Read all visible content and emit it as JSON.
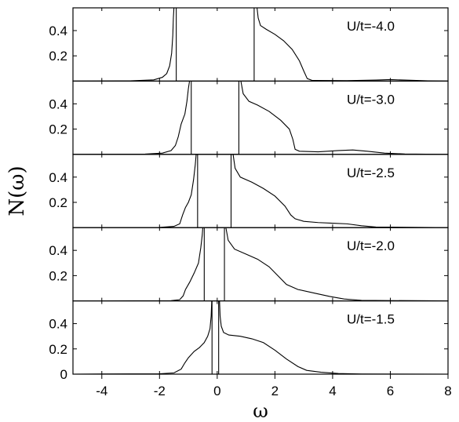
{
  "chart_data": {
    "type": "line",
    "xlabel": "ω",
    "ylabel": "N(ω)",
    "xlim": [
      -5,
      8
    ],
    "x_ticks": [
      -4,
      -2,
      0,
      2,
      4,
      6,
      8
    ],
    "x_tick_labels": [
      "-4",
      "-2",
      "0",
      "2",
      "4",
      "6",
      "8"
    ],
    "grid": false,
    "panels": [
      {
        "label": "U/t=-4.0",
        "ylim": [
          0,
          0.58
        ],
        "y_ticks": [
          0.2,
          0.4
        ],
        "y_tick_labels": [
          "0.2",
          "0.4"
        ],
        "gap_edges": [
          -1.42,
          1.28
        ],
        "curve": [
          [
            -5.0,
            0.0
          ],
          [
            -3.0,
            0.002
          ],
          [
            -2.2,
            0.01
          ],
          [
            -1.9,
            0.03
          ],
          [
            -1.75,
            0.06
          ],
          [
            -1.65,
            0.12
          ],
          [
            -1.58,
            0.22
          ],
          [
            -1.54,
            0.36
          ],
          [
            -1.52,
            0.5
          ],
          [
            -1.5,
            0.58
          ],
          [
            -1.42,
            0.58
          ],
          [
            -1.42,
            0.0
          ],
          [
            1.28,
            0.0
          ],
          [
            1.28,
            0.58
          ],
          [
            1.38,
            0.58
          ],
          [
            1.42,
            0.5
          ],
          [
            1.5,
            0.44
          ],
          [
            1.7,
            0.41
          ],
          [
            2.0,
            0.37
          ],
          [
            2.3,
            0.32
          ],
          [
            2.6,
            0.25
          ],
          [
            2.85,
            0.16
          ],
          [
            3.0,
            0.08
          ],
          [
            3.12,
            0.02
          ],
          [
            3.3,
            0.005
          ],
          [
            4.5,
            0.004
          ],
          [
            5.5,
            0.008
          ],
          [
            6.0,
            0.012
          ],
          [
            6.5,
            0.008
          ],
          [
            7.3,
            0.002
          ],
          [
            8.0,
            0.0
          ]
        ]
      },
      {
        "label": "U/t=-3.0",
        "ylim": [
          0,
          0.58
        ],
        "y_ticks": [
          0.2,
          0.4
        ],
        "y_tick_labels": [
          "0.2",
          "0.4"
        ],
        "gap_edges": [
          -0.9,
          0.75
        ],
        "curve": [
          [
            -5.0,
            0.0
          ],
          [
            -2.5,
            0.002
          ],
          [
            -1.9,
            0.01
          ],
          [
            -1.6,
            0.03
          ],
          [
            -1.45,
            0.07
          ],
          [
            -1.35,
            0.14
          ],
          [
            -1.25,
            0.24
          ],
          [
            -1.12,
            0.32
          ],
          [
            -1.05,
            0.42
          ],
          [
            -1.0,
            0.52
          ],
          [
            -0.96,
            0.58
          ],
          [
            -0.9,
            0.58
          ],
          [
            -0.9,
            0.0
          ],
          [
            0.75,
            0.0
          ],
          [
            0.75,
            0.58
          ],
          [
            0.82,
            0.58
          ],
          [
            0.9,
            0.48
          ],
          [
            1.1,
            0.42
          ],
          [
            1.4,
            0.39
          ],
          [
            1.8,
            0.34
          ],
          [
            2.2,
            0.27
          ],
          [
            2.5,
            0.2
          ],
          [
            2.62,
            0.12
          ],
          [
            2.7,
            0.04
          ],
          [
            2.85,
            0.025
          ],
          [
            3.5,
            0.02
          ],
          [
            4.2,
            0.03
          ],
          [
            4.7,
            0.035
          ],
          [
            5.2,
            0.025
          ],
          [
            5.8,
            0.01
          ],
          [
            6.5,
            0.003
          ],
          [
            8.0,
            0.0
          ]
        ]
      },
      {
        "label": "U/t=-2.5",
        "ylim": [
          0,
          0.58
        ],
        "y_ticks": [
          0.2,
          0.4
        ],
        "y_tick_labels": [
          "0.2",
          "0.4"
        ],
        "gap_edges": [
          -0.68,
          0.48
        ],
        "curve": [
          [
            -5.0,
            0.0
          ],
          [
            -2.0,
            0.002
          ],
          [
            -1.5,
            0.01
          ],
          [
            -1.3,
            0.03
          ],
          [
            -1.2,
            0.1
          ],
          [
            -1.1,
            0.16
          ],
          [
            -1.0,
            0.2
          ],
          [
            -0.9,
            0.26
          ],
          [
            -0.82,
            0.38
          ],
          [
            -0.76,
            0.5
          ],
          [
            -0.73,
            0.58
          ],
          [
            -0.68,
            0.58
          ],
          [
            -0.68,
            0.0
          ],
          [
            0.48,
            0.0
          ],
          [
            0.48,
            0.58
          ],
          [
            0.55,
            0.58
          ],
          [
            0.62,
            0.47
          ],
          [
            0.8,
            0.4
          ],
          [
            1.2,
            0.36
          ],
          [
            1.6,
            0.31
          ],
          [
            2.0,
            0.25
          ],
          [
            2.35,
            0.17
          ],
          [
            2.55,
            0.1
          ],
          [
            2.7,
            0.07
          ],
          [
            3.0,
            0.05
          ],
          [
            3.5,
            0.04
          ],
          [
            4.0,
            0.035
          ],
          [
            4.5,
            0.03
          ],
          [
            5.0,
            0.015
          ],
          [
            5.5,
            0.005
          ],
          [
            8.0,
            0.0
          ]
        ]
      },
      {
        "label": "U/t=-2.0",
        "ylim": [
          0,
          0.58
        ],
        "y_ticks": [
          0.2,
          0.4
        ],
        "y_tick_labels": [
          "0.2",
          "0.4"
        ],
        "gap_edges": [
          -0.45,
          0.25
        ],
        "curve": [
          [
            -5.0,
            0.0
          ],
          [
            -1.6,
            0.002
          ],
          [
            -1.3,
            0.01
          ],
          [
            -1.18,
            0.04
          ],
          [
            -1.1,
            0.09
          ],
          [
            -0.95,
            0.15
          ],
          [
            -0.8,
            0.22
          ],
          [
            -0.65,
            0.3
          ],
          [
            -0.57,
            0.42
          ],
          [
            -0.52,
            0.52
          ],
          [
            -0.5,
            0.58
          ],
          [
            -0.45,
            0.58
          ],
          [
            -0.45,
            0.0
          ],
          [
            0.25,
            0.0
          ],
          [
            0.25,
            0.58
          ],
          [
            0.3,
            0.58
          ],
          [
            0.38,
            0.48
          ],
          [
            0.6,
            0.41
          ],
          [
            1.0,
            0.37
          ],
          [
            1.4,
            0.33
          ],
          [
            1.8,
            0.27
          ],
          [
            2.1,
            0.2
          ],
          [
            2.4,
            0.13
          ],
          [
            2.8,
            0.09
          ],
          [
            3.4,
            0.06
          ],
          [
            3.9,
            0.035
          ],
          [
            4.4,
            0.015
          ],
          [
            5.0,
            0.004
          ],
          [
            8.0,
            0.0
          ]
        ]
      },
      {
        "label": "U/t=-1.5",
        "ylim": [
          0,
          0.58
        ],
        "y_ticks": [
          0,
          0.2,
          0.4
        ],
        "y_tick_labels": [
          "0",
          "0.2",
          "0.4"
        ],
        "gap_edges": [
          -0.18,
          0.05
        ],
        "curve": [
          [
            -5.0,
            0.0
          ],
          [
            -2.0,
            0.003
          ],
          [
            -1.5,
            0.01
          ],
          [
            -1.25,
            0.04
          ],
          [
            -1.12,
            0.09
          ],
          [
            -1.0,
            0.13
          ],
          [
            -0.8,
            0.18
          ],
          [
            -0.62,
            0.21
          ],
          [
            -0.45,
            0.25
          ],
          [
            -0.33,
            0.3
          ],
          [
            -0.25,
            0.36
          ],
          [
            -0.21,
            0.46
          ],
          [
            -0.19,
            0.58
          ],
          [
            -0.18,
            0.58
          ],
          [
            -0.18,
            0.0
          ],
          [
            0.05,
            0.0
          ],
          [
            0.05,
            0.58
          ],
          [
            0.08,
            0.58
          ],
          [
            0.1,
            0.46
          ],
          [
            0.14,
            0.38
          ],
          [
            0.22,
            0.33
          ],
          [
            0.4,
            0.31
          ],
          [
            0.8,
            0.3
          ],
          [
            1.2,
            0.28
          ],
          [
            1.6,
            0.25
          ],
          [
            2.0,
            0.19
          ],
          [
            2.4,
            0.12
          ],
          [
            2.8,
            0.06
          ],
          [
            3.1,
            0.03
          ],
          [
            3.6,
            0.015
          ],
          [
            4.2,
            0.005
          ],
          [
            5.0,
            0.001
          ],
          [
            8.0,
            0.0
          ]
        ]
      }
    ]
  }
}
